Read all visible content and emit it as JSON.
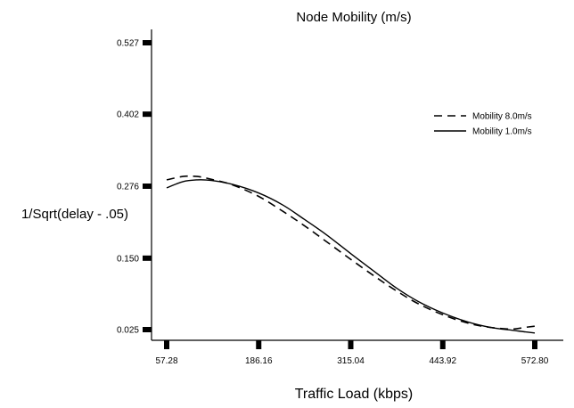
{
  "chart_data": {
    "type": "line",
    "title": "Node Mobility (m/s)",
    "xlabel": "Traffic Load (kbps)",
    "ylabel": "1/Sqrt(delay - .05)",
    "xlim": [
      57.28,
      572.8
    ],
    "ylim": [
      0.025,
      0.527
    ],
    "x_ticks": [
      "57.28",
      "186.16",
      "315.04",
      "443.92",
      "572.80"
    ],
    "y_ticks": [
      "0.527",
      "0.402",
      "0.276",
      "0.150",
      "0.025"
    ],
    "grid": false,
    "legend_position": "top-right",
    "x": [
      57.28,
      80,
      100,
      120,
      150,
      186.16,
      220,
      250,
      280,
      315.04,
      350,
      380,
      410,
      443.92,
      480,
      510,
      540,
      560,
      572.8
    ],
    "series": [
      {
        "name": "Mobility 8.0m/s",
        "style": "dashed",
        "color": "#000000",
        "values": [
          0.287,
          0.293,
          0.293,
          0.288,
          0.278,
          0.258,
          0.232,
          0.207,
          0.18,
          0.148,
          0.117,
          0.092,
          0.07,
          0.051,
          0.036,
          0.029,
          0.026,
          0.029,
          0.031
        ]
      },
      {
        "name": "Mobility 1.0m/s",
        "style": "solid",
        "color": "#000000",
        "values": [
          0.273,
          0.284,
          0.287,
          0.286,
          0.279,
          0.264,
          0.243,
          0.218,
          0.192,
          0.158,
          0.125,
          0.097,
          0.074,
          0.054,
          0.038,
          0.029,
          0.024,
          0.021,
          0.019
        ]
      }
    ]
  }
}
